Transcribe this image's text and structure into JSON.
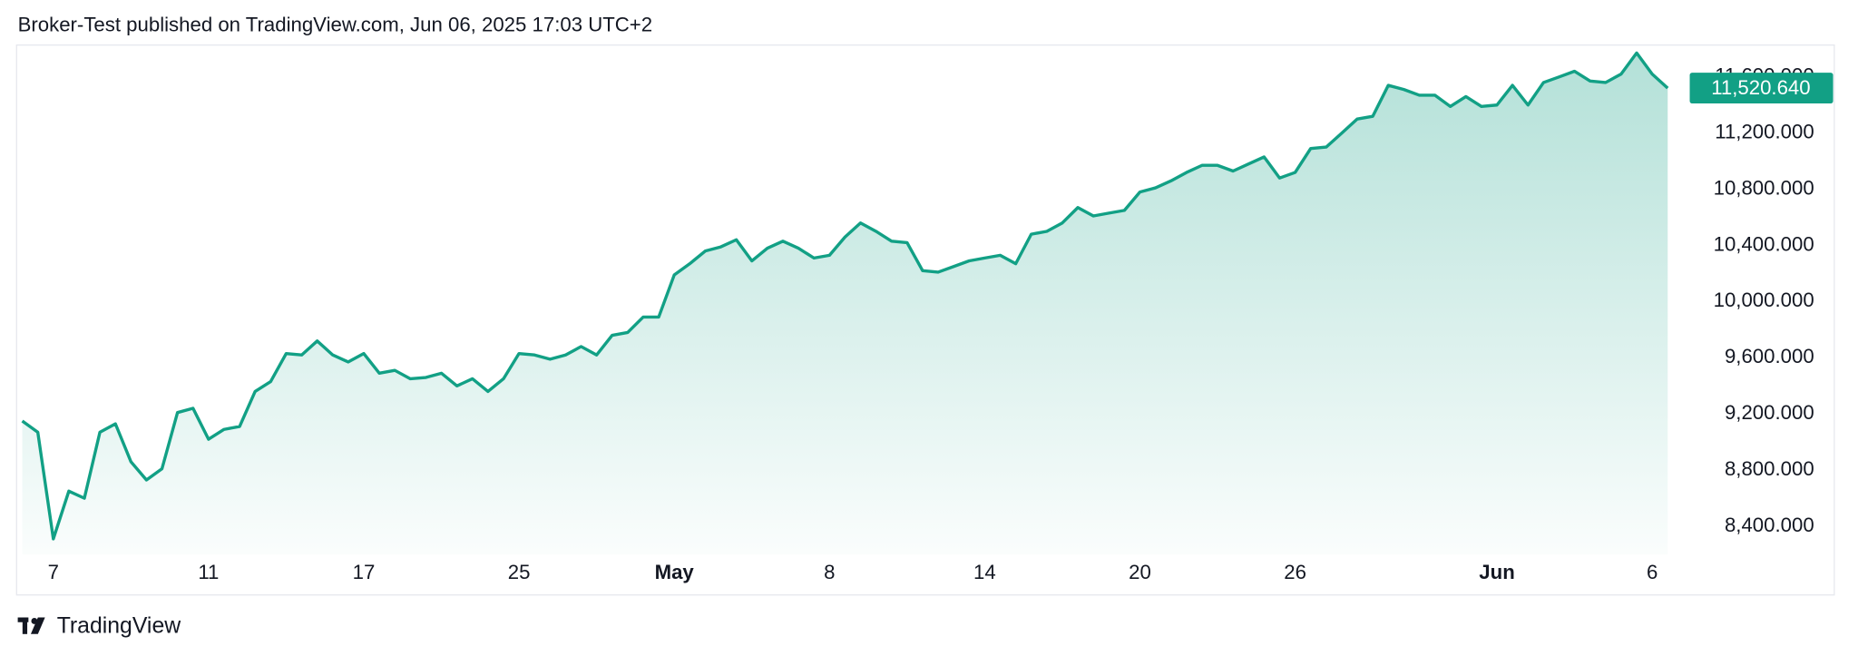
{
  "header": "Broker-Test published on TradingView.com, Jun 06, 2025 17:03 UTC+2",
  "footer": "TradingView",
  "chart_data": {
    "type": "area",
    "color": "#12a085",
    "grid": false,
    "categories": [
      null,
      null,
      "7",
      null,
      null,
      null,
      null,
      null,
      null,
      null,
      null,
      null,
      "11",
      null,
      null,
      null,
      null,
      null,
      null,
      null,
      null,
      null,
      "17",
      null,
      null,
      null,
      null,
      null,
      null,
      null,
      null,
      null,
      "25",
      null,
      null,
      null,
      null,
      null,
      null,
      null,
      null,
      null,
      "May",
      null,
      null,
      null,
      null,
      null,
      null,
      null,
      null,
      null,
      "8",
      null,
      null,
      null,
      null,
      null,
      null,
      null,
      null,
      null,
      "14",
      null,
      null,
      null,
      null,
      null,
      null,
      null,
      null,
      null,
      "20",
      null,
      null,
      null,
      null,
      null,
      null,
      null,
      null,
      null,
      "26",
      null,
      null,
      null,
      null,
      null,
      null,
      null,
      null,
      null,
      null,
      null,
      null,
      "Jun",
      null,
      null,
      null,
      null,
      null,
      null,
      null,
      null,
      null,
      "6",
      null
    ],
    "values": [
      9150,
      9070,
      8310,
      8650,
      8600,
      9070,
      9130,
      8860,
      8730,
      8810,
      9210,
      9240,
      9020,
      9090,
      9110,
      9360,
      9430,
      9630,
      9620,
      9720,
      9620,
      9570,
      9630,
      9490,
      9510,
      9450,
      9460,
      9490,
      9400,
      9450,
      9360,
      9450,
      9630,
      9620,
      9590,
      9620,
      9680,
      9620,
      9760,
      9780,
      9890,
      9890,
      10190,
      10270,
      10360,
      10390,
      10440,
      10290,
      10380,
      10430,
      10380,
      10310,
      10330,
      10460,
      10560,
      10500,
      10430,
      10420,
      10220,
      10210,
      10250,
      10290,
      10310,
      10330,
      10270,
      10480,
      10500,
      10560,
      10670,
      10610,
      10630,
      10650,
      10780,
      10810,
      10860,
      10920,
      10970,
      10970,
      10930,
      10980,
      11030,
      10880,
      10920,
      11090,
      11100,
      11200,
      11300,
      11320,
      11540,
      11510,
      11470,
      11470,
      11390,
      11460,
      11390,
      11400,
      11540,
      11400,
      11560,
      11600,
      11640,
      11570,
      11560,
      11620,
      11770,
      11620,
      11520.64
    ],
    "value_labels": [
      null,
      null,
      null,
      null,
      null,
      null,
      null,
      null,
      null,
      null,
      null,
      null,
      null,
      null,
      null,
      null,
      null,
      null,
      null,
      null,
      null,
      null,
      null,
      null,
      null,
      null,
      null,
      null,
      null,
      null,
      null,
      null,
      null,
      null,
      null,
      null,
      null,
      null,
      null,
      null,
      null,
      null,
      null,
      null,
      null,
      null,
      null,
      null,
      null,
      null,
      null,
      null,
      null,
      null,
      null,
      null,
      null,
      null,
      null,
      null,
      null,
      null,
      null,
      null,
      null,
      null,
      null,
      null,
      null,
      null,
      null,
      null,
      null,
      null,
      null,
      null,
      null,
      null,
      null,
      null,
      null,
      null,
      null,
      null,
      null,
      null,
      null,
      null,
      null,
      null,
      null,
      null,
      null,
      null,
      null,
      null,
      null,
      null,
      null,
      null,
      null,
      null,
      null,
      null,
      null,
      null,
      "11,520.640"
    ],
    "ylim": [
      8198,
      11810
    ],
    "yticks": [
      {
        "value": 8400,
        "label": "8,400.000"
      },
      {
        "value": 8800,
        "label": "8,800.000"
      },
      {
        "value": 9200,
        "label": "9,200.000"
      },
      {
        "value": 9600,
        "label": "9,600.000"
      },
      {
        "value": 10000,
        "label": "10,000.000"
      },
      {
        "value": 10400,
        "label": "10,400.000"
      },
      {
        "value": 10800,
        "label": "10,800.000"
      },
      {
        "value": 11200,
        "label": "11,200.000"
      },
      {
        "value": 11600,
        "label": "11,600.000"
      }
    ]
  }
}
